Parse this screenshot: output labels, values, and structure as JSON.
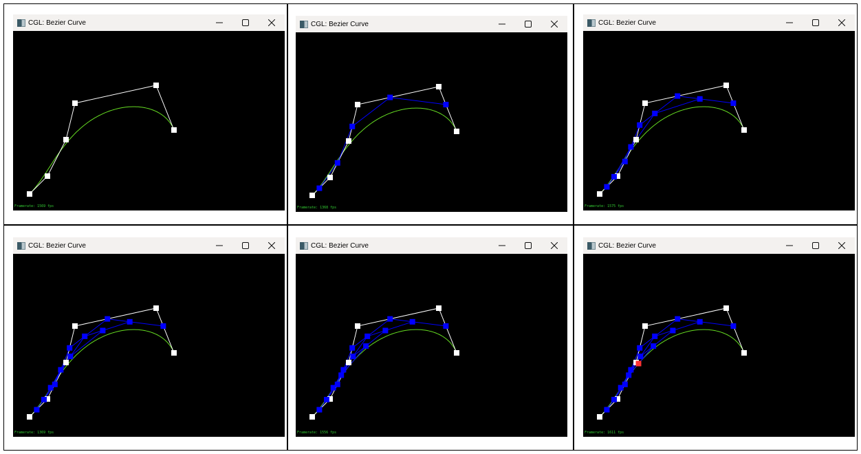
{
  "window_title": "CGL: Bezier Curve",
  "titlebar_buttons": [
    "minimize-icon",
    "maximize-icon",
    "close-icon"
  ],
  "colors": {
    "background": "#000000",
    "control_point": "#ffffff",
    "control_polygon": "#ffffff",
    "intermediate": "#0000ff",
    "curve": "#66dd22",
    "evaluated_point": "#ff3333",
    "framerate_text": "#33cc33"
  },
  "panels": [
    {
      "framerate": "Framerate: 1569 fps",
      "levels": 0
    },
    {
      "framerate": "Framerate: 1368 fps",
      "levels": 1
    },
    {
      "framerate": "Framerate: 1575 fps",
      "levels": 2
    },
    {
      "framerate": "Framerate: 1369 fps",
      "levels": 3
    },
    {
      "framerate": "Framerate: 1556 fps",
      "levels": 4
    },
    {
      "framerate": "Framerate: 1611 fps",
      "levels": 5
    }
  ]
}
